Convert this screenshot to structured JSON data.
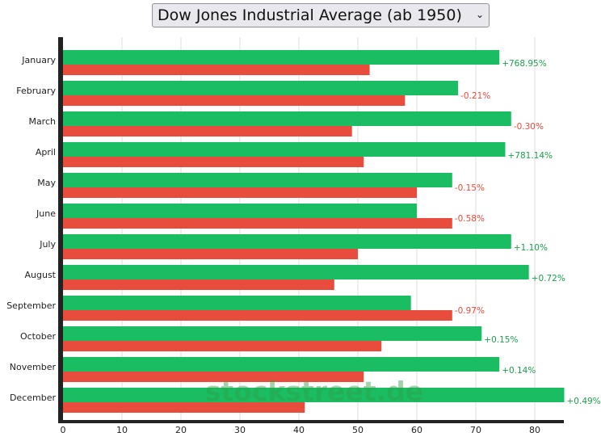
{
  "selector": {
    "label": "Dow Jones Industrial Average (ab 1950)"
  },
  "watermark": "stockstreet.de",
  "colors": {
    "up": "#1bbd63",
    "down": "#e74c3c",
    "up_text": "#1e9e4c",
    "down_text": "#e74c3c"
  },
  "chart_data": {
    "type": "bar",
    "orientation": "horizontal",
    "categories": [
      "January",
      "February",
      "March",
      "April",
      "May",
      "June",
      "July",
      "August",
      "September",
      "October",
      "November",
      "December"
    ],
    "series": [
      {
        "values": [
          74,
          67,
          76,
          75,
          66,
          60,
          76,
          79,
          59,
          71,
          74,
          85
        ]
      },
      {
        "values": [
          52,
          58,
          49,
          51,
          60,
          66,
          50,
          46,
          66,
          54,
          51,
          41
        ]
      }
    ],
    "data_labels": [
      "+768.95%",
      "-0.21%",
      "-0.30%",
      "+781.14%",
      "-0.15%",
      "-0.58%",
      "+1.10%",
      "+0.72%",
      "-0.97%",
      "+0.15%",
      "+0.14%",
      "+0.49%"
    ],
    "xlim": [
      0,
      85
    ],
    "xticks": [
      0,
      10,
      20,
      30,
      40,
      50,
      60,
      70,
      80
    ],
    "grid": true
  }
}
